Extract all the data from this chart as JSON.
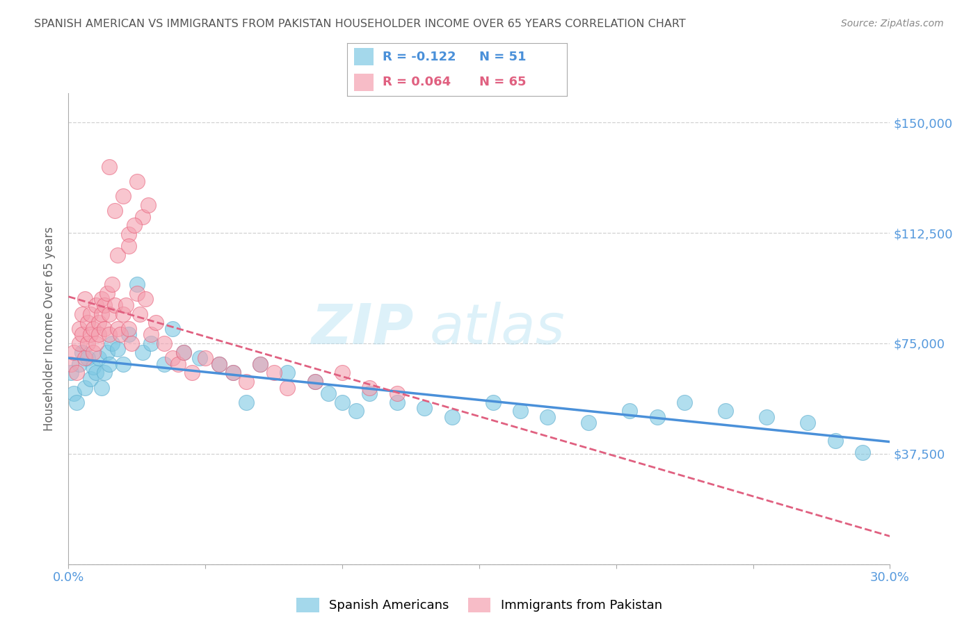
{
  "title": "SPANISH AMERICAN VS IMMIGRANTS FROM PAKISTAN HOUSEHOLDER INCOME OVER 65 YEARS CORRELATION CHART",
  "source": "Source: ZipAtlas.com",
  "ylabel": "Householder Income Over 65 years",
  "xmin": 0.0,
  "xmax": 0.3,
  "ymin": 0,
  "ymax": 160000,
  "yticks": [
    0,
    37500,
    75000,
    112500,
    150000
  ],
  "ytick_labels": [
    "",
    "$37,500",
    "$75,000",
    "$112,500",
    "$150,000"
  ],
  "xticks": [
    0.0,
    0.05,
    0.1,
    0.15,
    0.2,
    0.25,
    0.3
  ],
  "series1_color": "#7ec8e3",
  "series2_color": "#f4a0b0",
  "series1_edge": "#5aabcd",
  "series2_edge": "#e8607a",
  "line1_color": "#4a90d9",
  "line2_color": "#e06080",
  "series1_label": "Spanish Americans",
  "series2_label": "Immigrants from Pakistan",
  "R1": -0.122,
  "N1": 51,
  "R2": 0.064,
  "N2": 65,
  "watermark1": "ZIP",
  "watermark2": "atlas",
  "background_color": "#ffffff",
  "grid_color": "#cccccc",
  "title_color": "#555555",
  "axis_label_color": "#666666",
  "tick_color": "#5599dd",
  "spanish_x": [
    0.001,
    0.002,
    0.003,
    0.004,
    0.005,
    0.006,
    0.007,
    0.008,
    0.009,
    0.01,
    0.011,
    0.012,
    0.013,
    0.014,
    0.015,
    0.016,
    0.018,
    0.02,
    0.022,
    0.025,
    0.027,
    0.03,
    0.035,
    0.038,
    0.042,
    0.048,
    0.055,
    0.06,
    0.065,
    0.07,
    0.08,
    0.09,
    0.095,
    0.1,
    0.105,
    0.11,
    0.12,
    0.13,
    0.14,
    0.155,
    0.165,
    0.175,
    0.19,
    0.205,
    0.215,
    0.225,
    0.24,
    0.255,
    0.27,
    0.28,
    0.29
  ],
  "spanish_y": [
    65000,
    58000,
    55000,
    68000,
    72000,
    60000,
    70000,
    63000,
    67000,
    65000,
    70000,
    60000,
    65000,
    72000,
    68000,
    75000,
    73000,
    68000,
    78000,
    95000,
    72000,
    75000,
    68000,
    80000,
    72000,
    70000,
    68000,
    65000,
    55000,
    68000,
    65000,
    62000,
    58000,
    55000,
    52000,
    58000,
    55000,
    53000,
    50000,
    55000,
    52000,
    50000,
    48000,
    52000,
    50000,
    55000,
    52000,
    50000,
    48000,
    42000,
    38000
  ],
  "pakistan_x": [
    0.001,
    0.002,
    0.003,
    0.004,
    0.004,
    0.005,
    0.005,
    0.006,
    0.006,
    0.007,
    0.007,
    0.008,
    0.008,
    0.009,
    0.009,
    0.01,
    0.01,
    0.011,
    0.011,
    0.012,
    0.012,
    0.013,
    0.013,
    0.014,
    0.015,
    0.015,
    0.016,
    0.017,
    0.018,
    0.019,
    0.02,
    0.021,
    0.022,
    0.023,
    0.025,
    0.026,
    0.028,
    0.03,
    0.032,
    0.035,
    0.038,
    0.04,
    0.042,
    0.045,
    0.05,
    0.055,
    0.06,
    0.065,
    0.07,
    0.075,
    0.08,
    0.09,
    0.1,
    0.11,
    0.12,
    0.025,
    0.027,
    0.029,
    0.018,
    0.022,
    0.024,
    0.02,
    0.022,
    0.015,
    0.017
  ],
  "pakistan_y": [
    68000,
    72000,
    65000,
    80000,
    75000,
    78000,
    85000,
    70000,
    90000,
    75000,
    82000,
    78000,
    85000,
    80000,
    72000,
    88000,
    75000,
    82000,
    78000,
    85000,
    90000,
    88000,
    80000,
    92000,
    85000,
    78000,
    95000,
    88000,
    80000,
    78000,
    85000,
    88000,
    80000,
    75000,
    92000,
    85000,
    90000,
    78000,
    82000,
    75000,
    70000,
    68000,
    72000,
    65000,
    70000,
    68000,
    65000,
    62000,
    68000,
    65000,
    60000,
    62000,
    65000,
    60000,
    58000,
    130000,
    118000,
    122000,
    105000,
    112000,
    115000,
    125000,
    108000,
    135000,
    120000
  ]
}
